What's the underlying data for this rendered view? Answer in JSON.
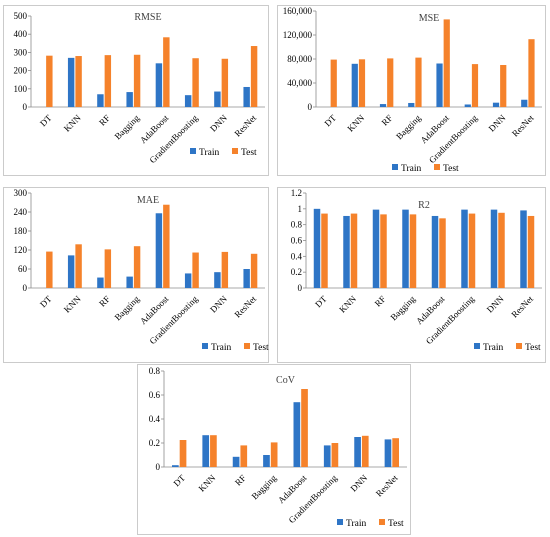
{
  "colors": {
    "train": "#2E75C6",
    "test": "#F5822B",
    "axis": "#8C8C8C",
    "border": "#BFBFBF"
  },
  "chart_data": [
    {
      "type": "bar",
      "title": "RMSE",
      "categories": [
        "DT",
        "KNN",
        "RF",
        "Bagging",
        "AdaBoost",
        "GradientBoosting",
        "DNN",
        "ResNet"
      ],
      "ylim": [
        0,
        500
      ],
      "yticks": [
        "0",
        "100",
        "200",
        "300",
        "400",
        "500"
      ],
      "ytick_values": [
        0,
        100,
        200,
        300,
        400,
        500
      ],
      "legend_position": "bottom-right",
      "series": [
        {
          "name": "Train",
          "values": [
            0,
            270,
            70,
            82,
            240,
            65,
            85,
            110
          ]
        },
        {
          "name": "Test",
          "values": [
            282,
            280,
            285,
            287,
            383,
            268,
            265,
            335
          ]
        }
      ]
    },
    {
      "type": "bar",
      "title": "MSE",
      "categories": [
        "DT",
        "KNN",
        "RF",
        "Bagging",
        "AdaBoost",
        "GradientBoosting",
        "DNN",
        "ResNet"
      ],
      "ylim": [
        0,
        160000
      ],
      "yticks": [
        "0",
        "40,000",
        "80,000",
        "120,000",
        "160,000"
      ],
      "ytick_values": [
        0,
        40000,
        80000,
        120000,
        160000
      ],
      "legend_position": "bottom-right",
      "series": [
        {
          "name": "Train",
          "values": [
            0,
            72000,
            4900,
            6700,
            72500,
            4200,
            7200,
            12100
          ]
        },
        {
          "name": "Test",
          "values": [
            79000,
            79500,
            81000,
            82300,
            146000,
            71500,
            70000,
            113000
          ]
        }
      ]
    },
    {
      "type": "bar",
      "title": "MAE",
      "categories": [
        "DT",
        "KNN",
        "RF",
        "Bagging",
        "AdaBoost",
        "GradientBoosting",
        "DNN",
        "ResNet"
      ],
      "ylim": [
        0,
        300
      ],
      "yticks": [
        "0",
        "60",
        "120",
        "180",
        "240",
        "300"
      ],
      "ytick_values": [
        0,
        60,
        120,
        180,
        240,
        300
      ],
      "legend_position": "bottom-right",
      "series": [
        {
          "name": "Train",
          "values": [
            0,
            103,
            33,
            36,
            236,
            46,
            50,
            60
          ]
        },
        {
          "name": "Test",
          "values": [
            115,
            138,
            122,
            132,
            263,
            112,
            114,
            108
          ]
        }
      ]
    },
    {
      "type": "bar",
      "title": "R2",
      "categories": [
        "DT",
        "KNN",
        "RF",
        "Bagging",
        "AdaBoost",
        "GradientBoosting",
        "DNN",
        "ResNet"
      ],
      "ylim": [
        0,
        1.2
      ],
      "yticks": [
        "0",
        "0.2",
        "0.4",
        "0.6",
        "0.8",
        "1",
        "1.2"
      ],
      "ytick_values": [
        0,
        0.2,
        0.4,
        0.6,
        0.8,
        1,
        1.2
      ],
      "legend_position": "bottom-right",
      "series": [
        {
          "name": "Train",
          "values": [
            1.0,
            0.91,
            0.99,
            0.99,
            0.91,
            0.99,
            0.99,
            0.98
          ]
        },
        {
          "name": "Test",
          "values": [
            0.94,
            0.94,
            0.93,
            0.93,
            0.88,
            0.94,
            0.95,
            0.91
          ]
        }
      ]
    },
    {
      "type": "bar",
      "title": "CoV",
      "categories": [
        "DT",
        "KNN",
        "RF",
        "Bagging",
        "AdaBoost",
        "GradientBoosting",
        "DNN",
        "ResNet"
      ],
      "ylim": [
        0,
        0.8
      ],
      "yticks": [
        "0",
        "0.2",
        "0.4",
        "0.6",
        "0.8"
      ],
      "ytick_values": [
        0,
        0.2,
        0.4,
        0.6,
        0.8
      ],
      "legend_position": "bottom-right",
      "series": [
        {
          "name": "Train",
          "values": [
            0.015,
            0.265,
            0.085,
            0.1,
            0.54,
            0.18,
            0.25,
            0.23
          ]
        },
        {
          "name": "Test",
          "values": [
            0.225,
            0.265,
            0.18,
            0.205,
            0.65,
            0.2,
            0.26,
            0.24
          ]
        }
      ]
    }
  ]
}
